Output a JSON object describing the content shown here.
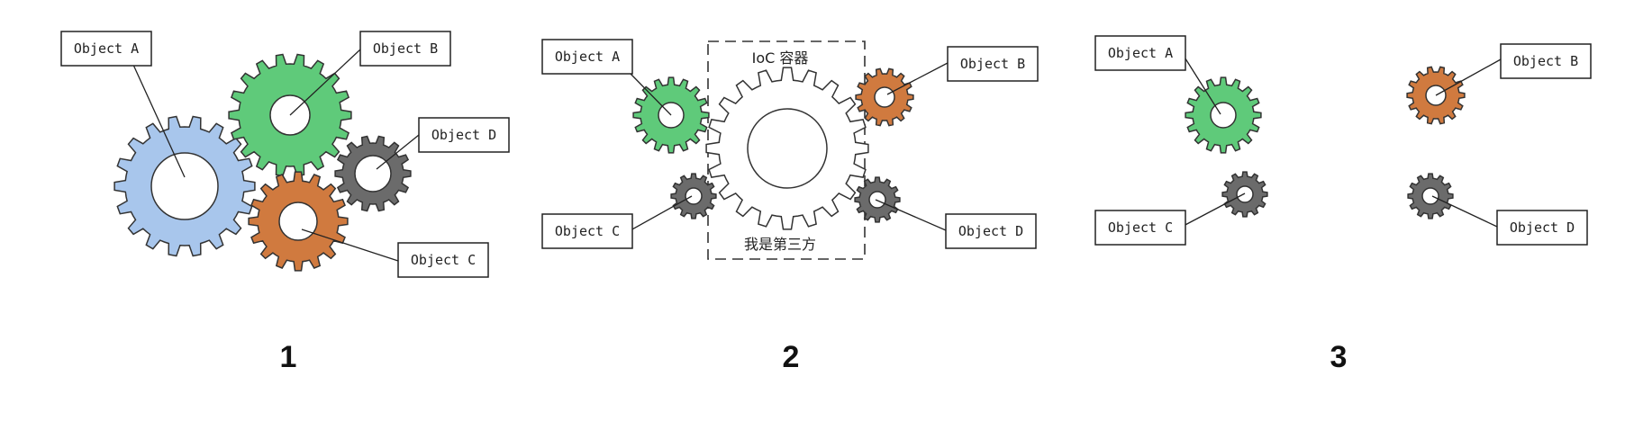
{
  "colors": {
    "object_a": "#5fca7a",
    "object_a_panel1": "#a8c6ec",
    "object_b_panel1": "#5fca7a",
    "object_b": "#d07a3f",
    "object_c_panel1": "#d07a3f",
    "object_c": "#6b6b6b",
    "object_d": "#6b6b6b",
    "container": "#ffffff",
    "stroke": "#333333"
  },
  "panels": [
    {
      "number": "1",
      "labels": {
        "object_a": "Object A",
        "object_b": "Object B",
        "object_c": "Object C",
        "object_d": "Object D"
      }
    },
    {
      "number": "2",
      "container_title": "IoC 容器",
      "container_caption": "我是第三方",
      "labels": {
        "object_a": "Object A",
        "object_b": "Object B",
        "object_c": "Object C",
        "object_d": "Object D"
      }
    },
    {
      "number": "3",
      "labels": {
        "object_a": "Object A",
        "object_b": "Object B",
        "object_c": "Object C",
        "object_d": "Object D"
      }
    }
  ]
}
